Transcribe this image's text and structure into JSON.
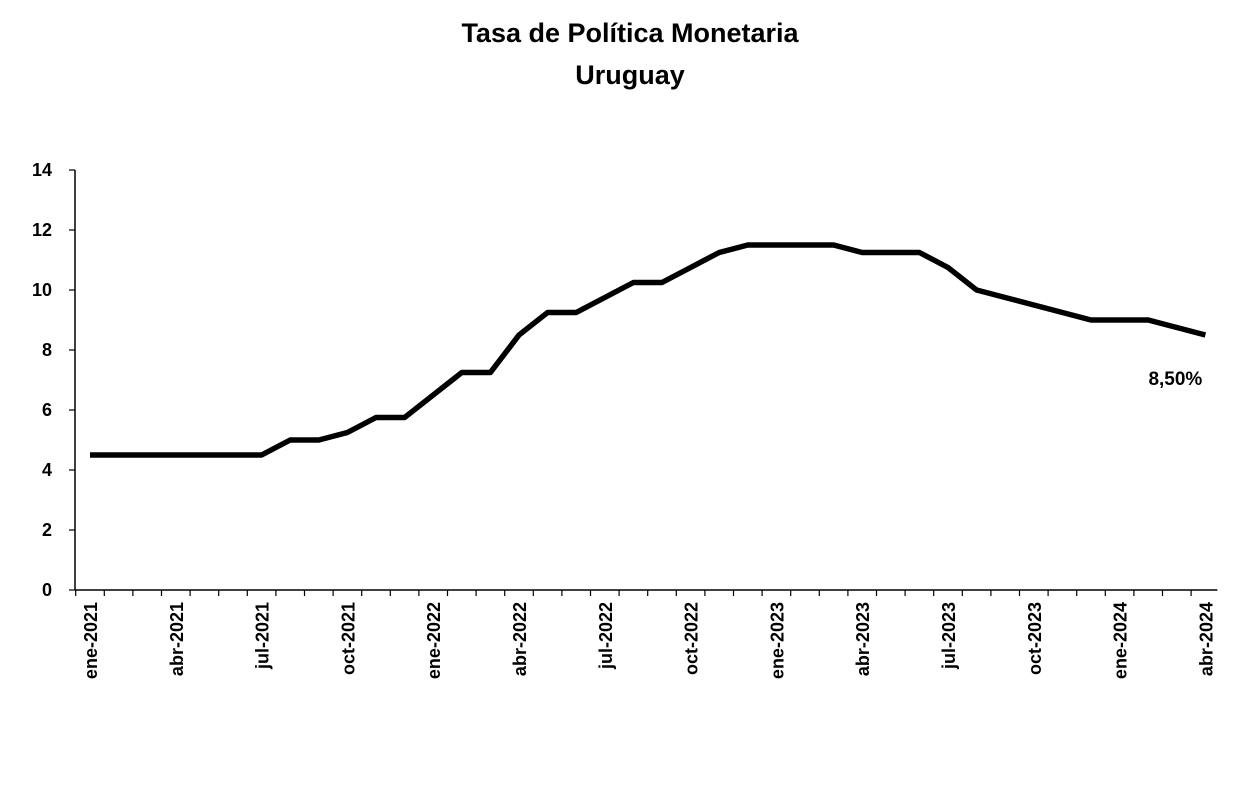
{
  "chart_data": {
    "type": "line",
    "title": "Tasa de Política Monetaria",
    "subtitle": "Uruguay",
    "xlabel": "",
    "ylabel": "",
    "ylim": [
      0,
      14
    ],
    "yticks": [
      0,
      2,
      4,
      6,
      8,
      10,
      12,
      14
    ],
    "grid": false,
    "x_tick_labels": [
      "ene-2021",
      "abr-2021",
      "jul-2021",
      "oct-2021",
      "ene-2022",
      "abr-2022",
      "jul-2022",
      "oct-2022",
      "ene-2023",
      "abr-2023",
      "jul-2023",
      "oct-2023",
      "ene-2024",
      "abr-2024"
    ],
    "x": [
      "2021-01",
      "2021-02",
      "2021-03",
      "2021-04",
      "2021-05",
      "2021-06",
      "2021-07",
      "2021-08",
      "2021-09",
      "2021-10",
      "2021-11",
      "2021-12",
      "2022-01",
      "2022-02",
      "2022-03",
      "2022-04",
      "2022-05",
      "2022-06",
      "2022-07",
      "2022-08",
      "2022-09",
      "2022-10",
      "2022-11",
      "2022-12",
      "2023-01",
      "2023-02",
      "2023-03",
      "2023-04",
      "2023-05",
      "2023-06",
      "2023-07",
      "2023-08",
      "2023-09",
      "2023-10",
      "2023-11",
      "2023-12",
      "2024-01",
      "2024-02",
      "2024-03",
      "2024-04"
    ],
    "series": [
      {
        "name": "",
        "color": "#000000",
        "values": [
          4.5,
          4.5,
          4.5,
          4.5,
          4.5,
          4.5,
          4.5,
          5.0,
          5.0,
          5.25,
          5.75,
          5.75,
          6.5,
          7.25,
          7.25,
          8.5,
          9.25,
          9.25,
          9.75,
          10.25,
          10.25,
          10.75,
          11.25,
          11.5,
          11.5,
          11.5,
          11.5,
          11.25,
          11.25,
          11.25,
          10.75,
          10.0,
          9.75,
          9.5,
          9.25,
          9.0,
          9.0,
          9.0,
          8.75,
          8.5
        ]
      }
    ],
    "annotations": [
      {
        "text": "8,50%",
        "x": "2024-04",
        "y": 8.5
      }
    ]
  }
}
